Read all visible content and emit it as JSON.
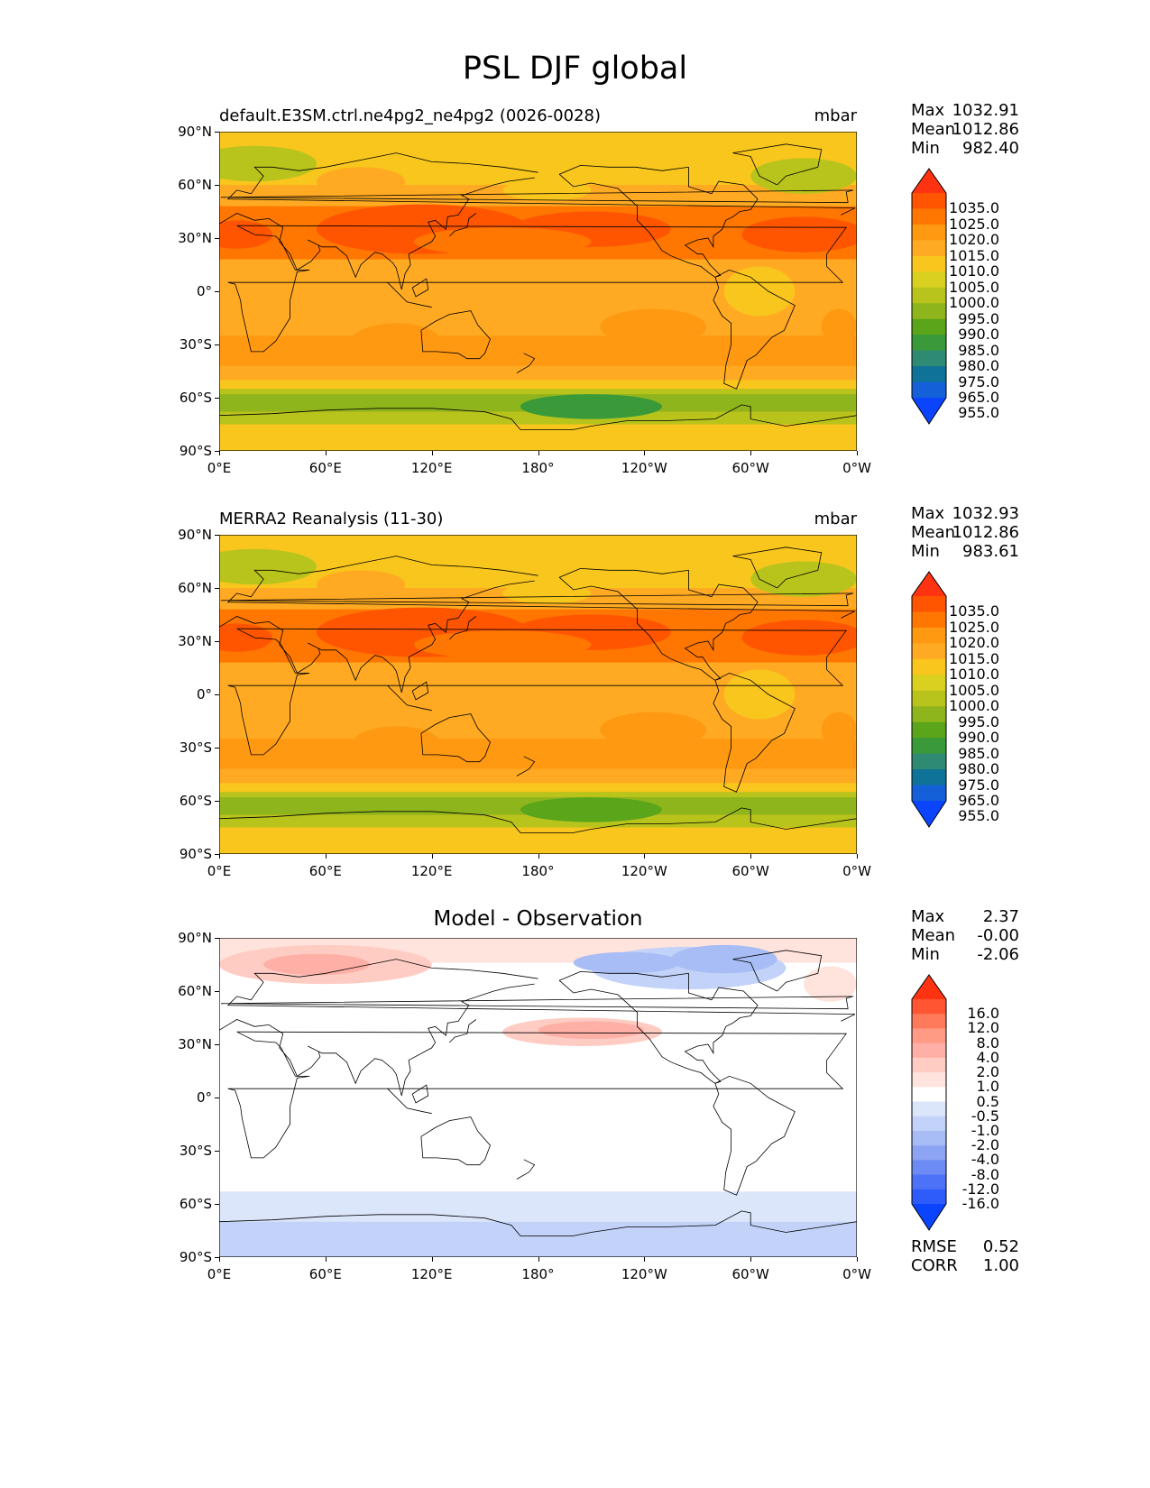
{
  "figure": {
    "title": "PSL DJF global"
  },
  "panels": [
    {
      "id": "test",
      "title": "default.E3SM.ctrl.ne4pg2_ne4pg2 (0026-0028)",
      "units": "mbar",
      "stats": {
        "max_label": "Max",
        "max": "1032.91",
        "mean_label": "Mean",
        "mean": "1012.86",
        "min_label": "Min",
        "min": "982.40"
      },
      "colorbar": {
        "levels": [
          "1035.0",
          "1025.0",
          "1020.0",
          "1015.0",
          "1010.0",
          "1005.0",
          "1000.0",
          "995.0",
          "990.0",
          "985.0",
          "980.0",
          "975.0",
          "965.0",
          "955.0"
        ],
        "colors": [
          "#ff3311",
          "#ff5500",
          "#ff7700",
          "#ff9911",
          "#ffaa22",
          "#f8c61c",
          "#d9d020",
          "#b8c41c",
          "#8fb51c",
          "#5aa51a",
          "#3a9a3a",
          "#2f8a74",
          "#0f7399",
          "#1460d8",
          "#0a44ff"
        ]
      }
    },
    {
      "id": "reference",
      "title": "MERRA2 Reanalysis (11-30)",
      "units": "mbar",
      "stats": {
        "max_label": "Max",
        "max": "1032.93",
        "mean_label": "Mean",
        "mean": "1012.86",
        "min_label": "Min",
        "min": "983.61"
      },
      "colorbar": {
        "levels": [
          "1035.0",
          "1025.0",
          "1020.0",
          "1015.0",
          "1010.0",
          "1005.0",
          "1000.0",
          "995.0",
          "990.0",
          "985.0",
          "980.0",
          "975.0",
          "965.0",
          "955.0"
        ],
        "colors": [
          "#ff3311",
          "#ff5500",
          "#ff7700",
          "#ff9911",
          "#ffaa22",
          "#f8c61c",
          "#d9d020",
          "#b8c41c",
          "#8fb51c",
          "#5aa51a",
          "#3a9a3a",
          "#2f8a74",
          "#0f7399",
          "#1460d8",
          "#0a44ff"
        ]
      }
    },
    {
      "id": "difference",
      "title": "Model - Observation",
      "units": "",
      "stats": {
        "max_label": "Max",
        "max": "2.37",
        "mean_label": "Mean",
        "mean": "-0.00",
        "min_label": "Min",
        "min": "-2.06"
      },
      "extra_stats": {
        "rmse_label": "RMSE",
        "rmse": "0.52",
        "corr_label": "CORR",
        "corr": "1.00"
      },
      "colorbar": {
        "levels": [
          "16.0",
          "12.0",
          "8.0",
          "4.0",
          "2.0",
          "1.0",
          "0.5",
          "-0.5",
          "-1.0",
          "-2.0",
          "-4.0",
          "-8.0",
          "-12.0",
          "-16.0"
        ],
        "colors": [
          "#ff3311",
          "#ff5533",
          "#ff7a5a",
          "#ff9a85",
          "#ffb0a6",
          "#ffccc4",
          "#ffe3dd",
          "#ffffff",
          "#dce6fb",
          "#c2d2f8",
          "#a8bcf5",
          "#8ca4f3",
          "#6c8bf5",
          "#4d72f7",
          "#2e5cfb",
          "#0a44ff"
        ]
      }
    }
  ],
  "axes": {
    "lat_ticks": [
      "90°N",
      "60°N",
      "30°N",
      "0°",
      "30°S",
      "60°S",
      "90°S"
    ],
    "lon_ticks": [
      "0°E",
      "60°E",
      "120°E",
      "180°",
      "120°W",
      "60°W",
      "0°W"
    ]
  },
  "map_data": {
    "projection": "PlateCarree",
    "lon_range": [
      0,
      360
    ],
    "lat_range": [
      -90,
      90
    ],
    "fields": {
      "test_bands": [
        {
          "lat": [
            60,
            90
          ],
          "level": "1010.0"
        },
        {
          "lat": [
            15,
            45
          ],
          "level": "1020.0"
        },
        {
          "lat": [
            -40,
            15
          ],
          "level": "1015.0"
        },
        {
          "lat": [
            -50,
            -40
          ],
          "level": "1010.0"
        },
        {
          "lat": [
            -75,
            -50
          ],
          "level": "995.0"
        },
        {
          "lat": [
            -90,
            -75
          ],
          "level": "1005.0"
        }
      ],
      "difference_regions": [
        {
          "name": "Eurasia Arctic",
          "sign": "positive",
          "level": "1.0"
        },
        {
          "name": "North Pacific",
          "sign": "positive",
          "level": "1.0"
        },
        {
          "name": "North America Arctic",
          "sign": "negative",
          "level": "-1.0"
        },
        {
          "name": "Southern Ocean",
          "sign": "negative",
          "level": "-0.5"
        },
        {
          "name": "Antarctica",
          "sign": "negative",
          "level": "-1.0"
        }
      ]
    }
  }
}
